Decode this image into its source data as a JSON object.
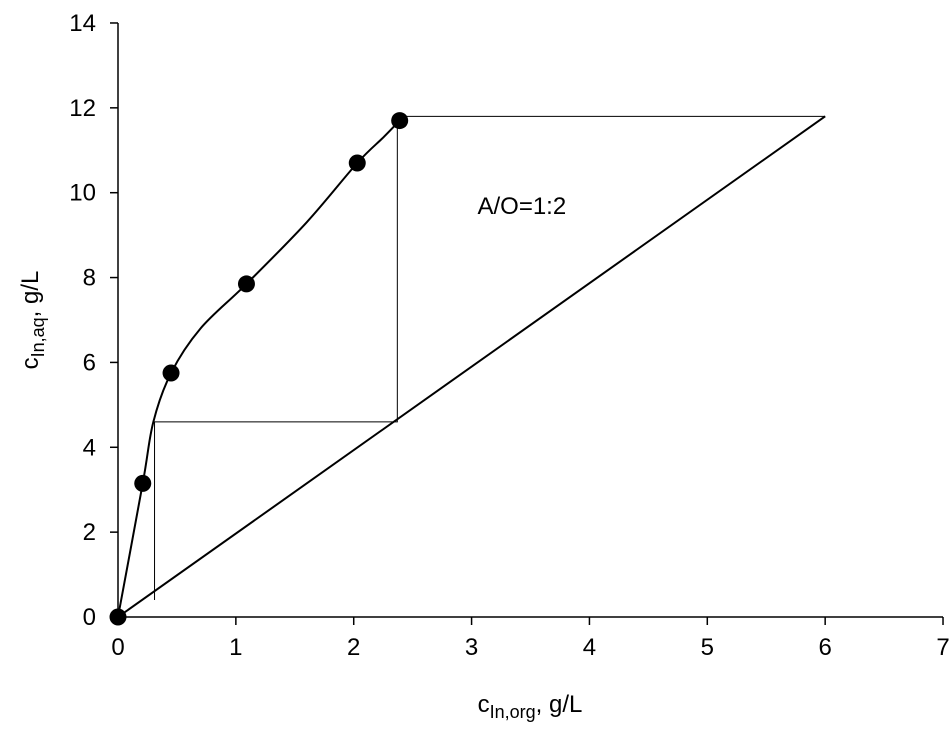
{
  "chart_data": {
    "type": "scatter",
    "xlabel": {
      "main": "c",
      "sub": "In,org",
      "unit": ", g/L"
    },
    "ylabel": {
      "main": "c",
      "sub": "In,aq",
      "unit": ", g/L"
    },
    "xlim": [
      0,
      7
    ],
    "ylim": [
      0,
      14
    ],
    "xticks": [
      0,
      1,
      2,
      3,
      4,
      5,
      6,
      7
    ],
    "yticks": [
      0,
      2,
      4,
      6,
      8,
      10,
      12,
      14
    ],
    "grid": false,
    "points": {
      "x": [
        0,
        0.21,
        0.45,
        1.09,
        2.03,
        2.39
      ],
      "y": [
        0,
        3.15,
        5.75,
        7.85,
        10.7,
        11.7
      ]
    },
    "equilibrium_curve": {
      "x": [
        0,
        0.21,
        0.3,
        0.45,
        0.7,
        1.09,
        1.6,
        2.03,
        2.25,
        2.39
      ],
      "y": [
        0,
        3.15,
        4.6,
        5.75,
        6.8,
        7.85,
        9.3,
        10.7,
        11.3,
        11.7
      ]
    },
    "operating_line": {
      "x": [
        0,
        6.0
      ],
      "y": [
        0,
        11.8
      ]
    },
    "stage_steps": {
      "x": [
        6.0,
        2.39,
        2.37,
        2.37,
        0.31,
        0.31,
        0.31
      ],
      "y": [
        11.8,
        11.8,
        11.7,
        4.6,
        4.6,
        4.6,
        0.4
      ]
    },
    "annotations": [
      {
        "text": "A/O=1:2",
        "x": 3.05,
        "y": 9.5
      }
    ]
  }
}
